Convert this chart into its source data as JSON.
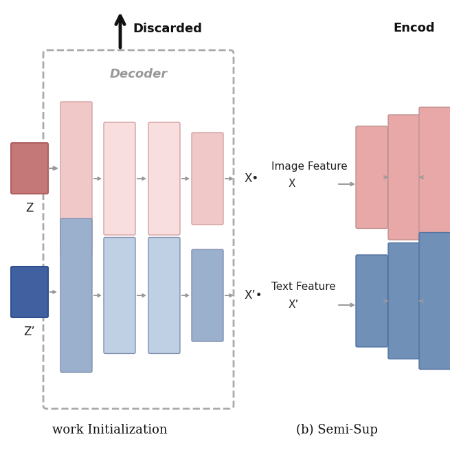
{
  "background_color": "#ffffff",
  "pink_dark": "#c47878",
  "pink_mid": "#e8a8a8",
  "pink_light": "#f0c8c8",
  "pink_lighter": "#f8dede",
  "blue_dark": "#4060a0",
  "blue_mid": "#7090b8",
  "blue_light": "#9ab0cc",
  "blue_lighter": "#c0d0e4",
  "arrow_color": "#999999",
  "text_color": "#222222",
  "decoder_label_color": "#999999",
  "bottom_left_label": "work Initialization",
  "bottom_right_label": "(b) Semi-Sup",
  "encoder_label": "Encod",
  "discarded_label": "Discarded",
  "decoder_label": "Decoder",
  "image_feature_label": "Image Feature",
  "image_x_label": "X",
  "text_feature_label": "Text Feature",
  "text_x_label": "X’",
  "z_label": "Z",
  "zprime_label": "Z’",
  "xstar_label": "X•",
  "xprimestar_label": "X’•"
}
